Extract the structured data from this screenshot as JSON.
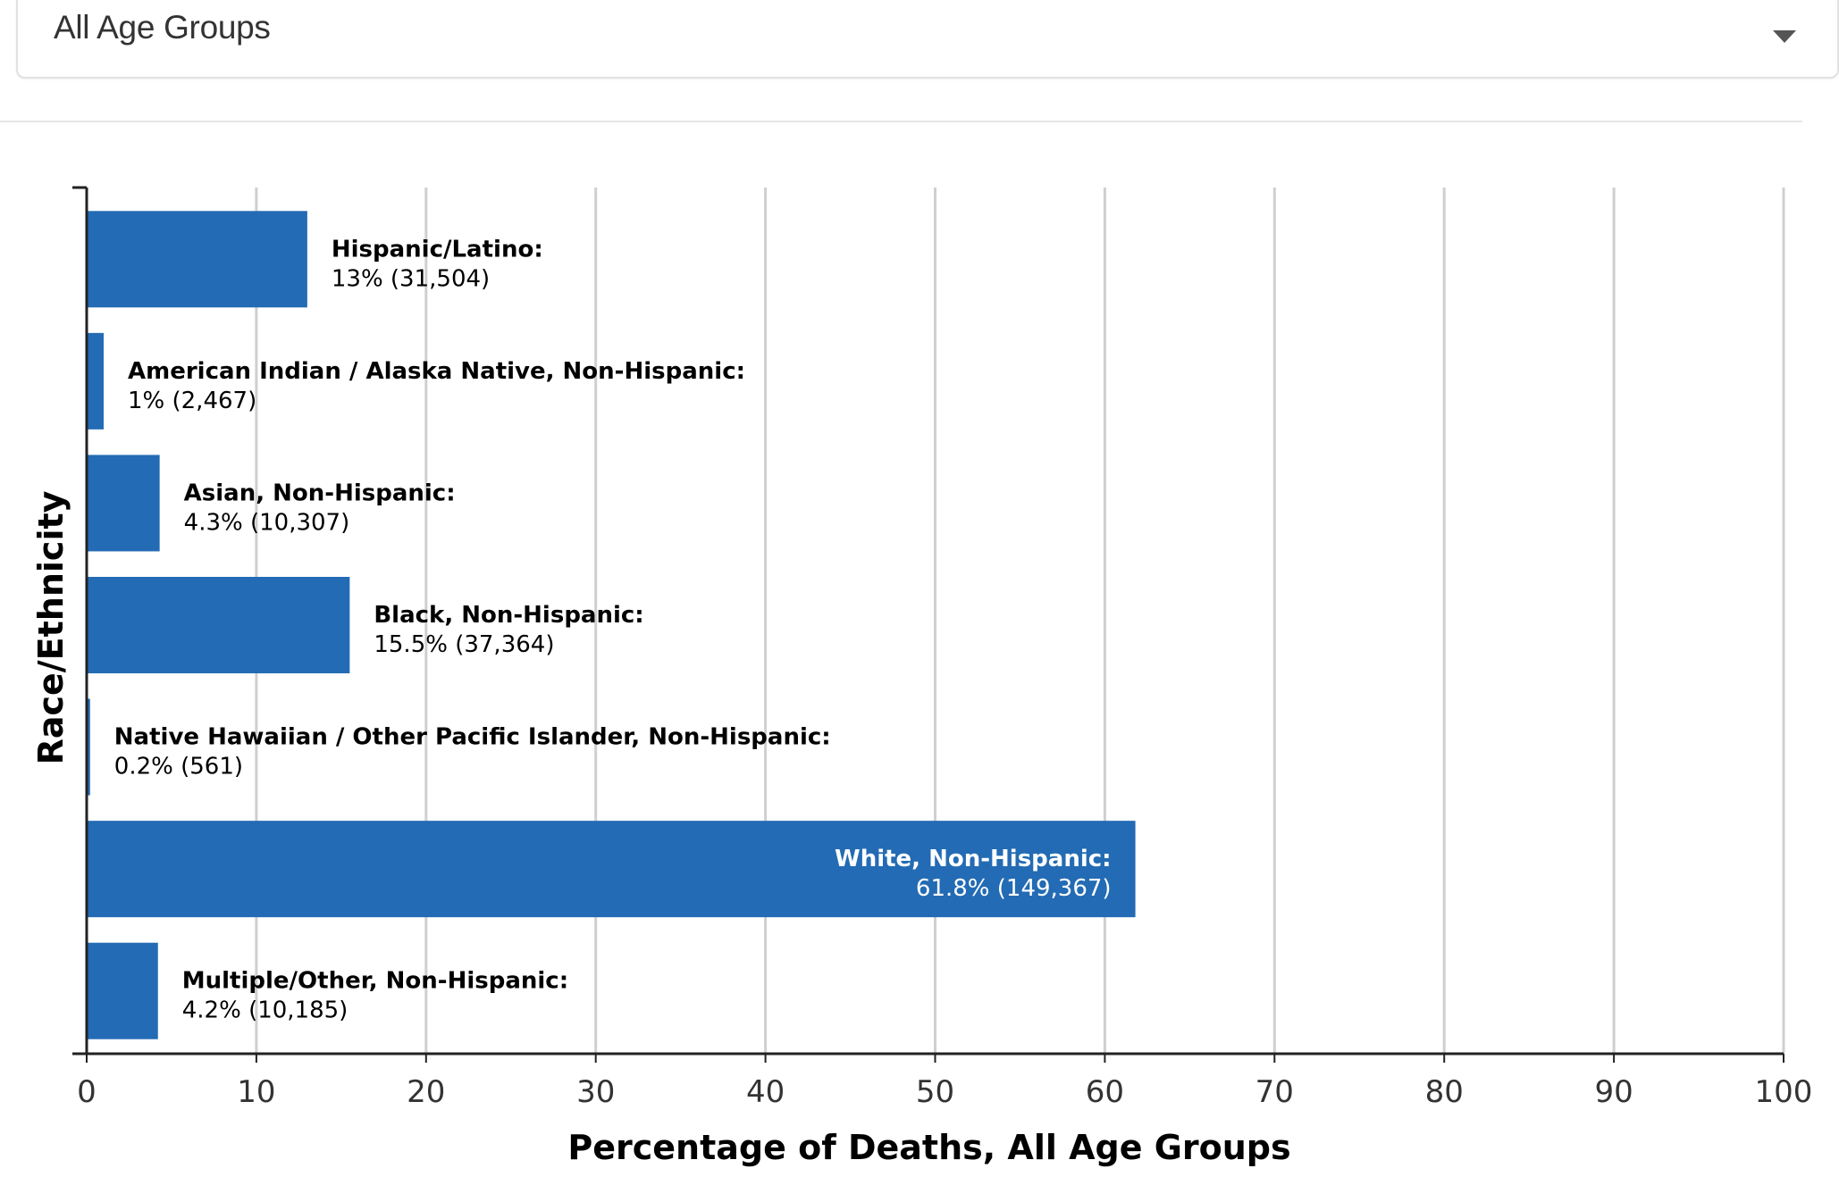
{
  "filter": {
    "selected": "All Age Groups"
  },
  "chart_data": {
    "type": "bar",
    "orientation": "horizontal",
    "categories": [
      "Hispanic/Latino:",
      "American Indian / Alaska Native, Non-Hispanic:",
      "Asian, Non-Hispanic:",
      "Black, Non-Hispanic:",
      "Native Hawaiian / Other Pacific Islander, Non-Hispanic:",
      "White, Non-Hispanic:",
      "Multiple/Other, Non-Hispanic:"
    ],
    "values": [
      13,
      1,
      4.3,
      15.5,
      0.2,
      61.8,
      4.2
    ],
    "data_labels": [
      "13% (31,504)",
      "1% (2,467)",
      "4.3% (10,307)",
      "15.5% (37,364)",
      "0.2% (561)",
      "61.8% (149,367)",
      "4.2% (10,185)"
    ],
    "xlabel": "Percentage of Deaths, All Age Groups",
    "ylabel": "Race/Ethnicity",
    "xlim": [
      0,
      100
    ],
    "x_ticks": [
      "0",
      "10",
      "20",
      "30",
      "40",
      "50",
      "60",
      "70",
      "80",
      "90",
      "100"
    ],
    "grid": true,
    "bar_color": "#236bb4"
  }
}
